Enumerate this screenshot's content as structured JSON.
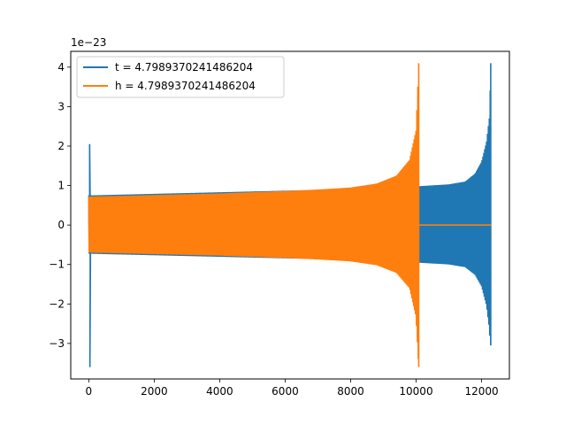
{
  "chart_data": {
    "type": "line",
    "title": "",
    "xlabel": "",
    "ylabel": "",
    "y_offset_label": "1e−23",
    "xlim": [
      -550,
      12850
    ],
    "ylim": [
      -3.9,
      4.4
    ],
    "xticks": [
      0,
      2000,
      4000,
      6000,
      8000,
      10000,
      12000
    ],
    "yticks": [
      -3,
      -2,
      -1,
      0,
      1,
      2,
      3,
      4
    ],
    "ytick_labels": [
      "−3",
      "−2",
      "−1",
      "0",
      "1",
      "2",
      "3",
      "4"
    ],
    "grid": false,
    "legend_position": "top-left",
    "series": [
      {
        "name": "t = 4.7989370241486204",
        "color": "#1f77b4",
        "x_range": [
          0,
          12300
        ],
        "envelope_points": [
          [
            0,
            0.75
          ],
          [
            1000,
            0.77
          ],
          [
            2000,
            0.79
          ],
          [
            3000,
            0.81
          ],
          [
            4000,
            0.83
          ],
          [
            5000,
            0.85
          ],
          [
            6000,
            0.87
          ],
          [
            7000,
            0.89
          ],
          [
            8000,
            0.92
          ],
          [
            9000,
            0.95
          ],
          [
            10000,
            0.98
          ],
          [
            11000,
            1.03
          ],
          [
            11500,
            1.1
          ],
          [
            11800,
            1.3
          ],
          [
            12000,
            1.6
          ],
          [
            12150,
            2.1
          ],
          [
            12250,
            2.8
          ],
          [
            12280,
            4.1
          ]
        ],
        "lower_envelope_end": -3.05,
        "spike": {
          "x": 0,
          "min": -3.6,
          "max": 2.05
        }
      },
      {
        "name": "h = 4.7989370241486204",
        "color": "#ff7f0e",
        "x_range": [
          0,
          12300
        ],
        "envelope_points": [
          [
            0,
            0.72
          ],
          [
            1000,
            0.74
          ],
          [
            2000,
            0.76
          ],
          [
            3000,
            0.78
          ],
          [
            4000,
            0.8
          ],
          [
            5000,
            0.83
          ],
          [
            6000,
            0.86
          ],
          [
            7000,
            0.9
          ],
          [
            8000,
            0.95
          ],
          [
            8800,
            1.05
          ],
          [
            9400,
            1.25
          ],
          [
            9800,
            1.65
          ],
          [
            10000,
            2.4
          ],
          [
            10080,
            4.1
          ]
        ],
        "lower_envelope_end": -3.6,
        "flat_after": {
          "x_start": 10080,
          "x_end": 12300,
          "value": 0.0
        }
      }
    ]
  }
}
